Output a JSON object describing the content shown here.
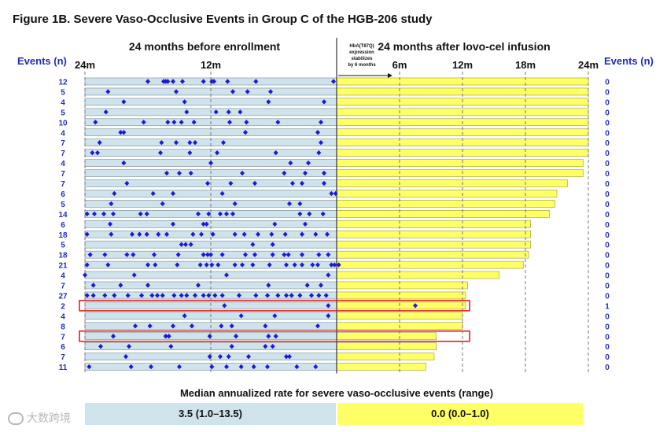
{
  "figure_title": "Figure 1B. Severe Vaso-Occlusive Events in Group C of the HGB-206 study",
  "chart_data": {
    "type": "bar",
    "title": "Figure 1B. Severe Vaso-Occlusive Events in Group C of the HGB-206 study",
    "left_panel": {
      "heading": "24 months before enrollment",
      "ticks": [
        "24m",
        "12m"
      ],
      "range_months": [
        24,
        0
      ],
      "color": "#cfe3ec"
    },
    "right_panel": {
      "heading": "24 months after lovo-cel infusion",
      "ticks": [
        "6m",
        "12m",
        "18m",
        "24m"
      ],
      "range_months": [
        0,
        24
      ],
      "color": "#ffff66",
      "annotation": [
        "HbA(T87Q)",
        "expression",
        "stabilizes",
        "by 6 months"
      ]
    },
    "y_label_left": "Events (n)",
    "y_label_right": "Events (n)",
    "patients": [
      {
        "events_before": 12,
        "events_after": 0,
        "followup_months": 24.0,
        "event_months": [
          18.0,
          16.5,
          16.3,
          16.1,
          15.6,
          14.7,
          12.7,
          11.9,
          11.7,
          10.4,
          7.7,
          0.3
        ]
      },
      {
        "events_before": 5,
        "events_after": 0,
        "followup_months": 24.0,
        "event_months": [
          21.8,
          15.3,
          9.9,
          8.5,
          6.3
        ]
      },
      {
        "events_before": 4,
        "events_after": 0,
        "followup_months": 24.0,
        "event_months": [
          20.3,
          14.5,
          6.5,
          1.2
        ]
      },
      {
        "events_before": 5,
        "events_after": 0,
        "followup_months": 24.0,
        "event_months": [
          22.0,
          14.3,
          11.5,
          10.3,
          9.2
        ]
      },
      {
        "events_before": 10,
        "events_after": 0,
        "followup_months": 24.0,
        "event_months": [
          23.0,
          18.4,
          16.1,
          15.5,
          14.8,
          13.6,
          10.2,
          8.6,
          5.6,
          1.5
        ]
      },
      {
        "events_before": 4,
        "events_after": 0,
        "followup_months": 24.0,
        "event_months": [
          20.6,
          20.3,
          8.7,
          1.8
        ]
      },
      {
        "events_before": 7,
        "events_after": 0,
        "followup_months": 24.0,
        "event_months": [
          22.6,
          16.7,
          15.3,
          14.0,
          13.5,
          10.8,
          1.5
        ]
      },
      {
        "events_before": 7,
        "events_after": 0,
        "followup_months": 24.0,
        "event_months": [
          23.3,
          22.8,
          16.8,
          14.0,
          11.4,
          5.8,
          1.7
        ]
      },
      {
        "events_before": 4,
        "events_after": 0,
        "followup_months": 23.5,
        "event_months": [
          20.3,
          12.0,
          4.4,
          2.7
        ]
      },
      {
        "events_before": 7,
        "events_after": 0,
        "followup_months": 23.5,
        "event_months": [
          16.2,
          15.0,
          13.9,
          9.0,
          5.0,
          3.0,
          1.2
        ]
      },
      {
        "events_before": 7,
        "events_after": 0,
        "followup_months": 22.0,
        "event_months": [
          20.0,
          12.3,
          10.1,
          7.8,
          4.2,
          3.3,
          1.2
        ]
      },
      {
        "events_before": 6,
        "events_after": 0,
        "followup_months": 21.0,
        "event_months": [
          21.2,
          17.5,
          15.6,
          10.9,
          0.5,
          0.1
        ]
      },
      {
        "events_before": 5,
        "events_after": 0,
        "followup_months": 20.8,
        "event_months": [
          21.5,
          16.6,
          9.7,
          4.5,
          3.5
        ]
      },
      {
        "events_before": 14,
        "events_after": 0,
        "followup_months": 20.3,
        "event_months": [
          23.8,
          23.1,
          22.2,
          21.3,
          18.7,
          18.1,
          13.2,
          12.2,
          11.1,
          10.5,
          9.9,
          3.5,
          2.6,
          1.3
        ]
      },
      {
        "events_before": 6,
        "events_after": 0,
        "followup_months": 18.5,
        "event_months": [
          21.6,
          15.6,
          12.7,
          12.4,
          5.9,
          3.0
        ]
      },
      {
        "events_before": 18,
        "events_after": 0,
        "followup_months": 18.5,
        "event_months": [
          23.8,
          21.5,
          19.5,
          18.8,
          18.1,
          17.0,
          16.2,
          13.7,
          12.9,
          11.8,
          9.7,
          8.8,
          7.5,
          6.2,
          4.9,
          3.3,
          2.0,
          0.9
        ]
      },
      {
        "events_before": 5,
        "events_after": 0,
        "followup_months": 18.5,
        "event_months": [
          14.8,
          14.4,
          13.9,
          8.0,
          6.1
        ]
      },
      {
        "events_before": 18,
        "events_after": 0,
        "followup_months": 18.3,
        "event_months": [
          23.5,
          22.1,
          20.0,
          19.4,
          17.4,
          15.1,
          12.7,
          12.3,
          12.0,
          10.9,
          8.7,
          7.8,
          6.1,
          5.0,
          4.6,
          3.3,
          1.7,
          0.8
        ]
      },
      {
        "events_before": 21,
        "events_after": 0,
        "followup_months": 17.8,
        "event_months": [
          23.8,
          21.8,
          18.0,
          17.3,
          15.2,
          13.0,
          12.4,
          11.9,
          11.3,
          9.7,
          9.0,
          8.0,
          6.4,
          4.8,
          4.0,
          3.3,
          2.3,
          1.8,
          0.5,
          0.2,
          -0.2
        ]
      },
      {
        "events_before": 4,
        "events_after": 0,
        "followup_months": 15.5,
        "event_months": [
          24.0,
          19.3,
          10.5,
          0.8
        ]
      },
      {
        "events_before": 7,
        "events_after": 0,
        "followup_months": 12.5,
        "event_months": [
          23.2,
          20.6,
          18.0,
          13.2,
          6.5,
          2.8,
          1.5
        ]
      },
      {
        "events_before": 27,
        "events_after": 0,
        "followup_months": 12.3,
        "event_months": [
          23.8,
          23.2,
          22.1,
          21.2,
          19.9,
          18.6,
          17.6,
          17.1,
          16.6,
          15.5,
          14.8,
          14.3,
          13.5,
          12.7,
          12.2,
          11.6,
          10.9,
          9.3,
          7.7,
          6.6,
          5.6,
          4.8,
          4.3,
          3.5,
          2.4,
          1.7,
          1.0
        ]
      },
      {
        "events_before": 2,
        "events_after": 1,
        "followup_months": 12.3,
        "event_months": [
          10.7,
          0.8
        ],
        "events_after_months": [
          7.5
        ],
        "highlighted": true
      },
      {
        "events_before": 4,
        "events_after": 0,
        "followup_months": 12.0,
        "event_months": [
          14.5,
          9.1,
          5.9,
          0.8
        ]
      },
      {
        "events_before": 8,
        "events_after": 0,
        "followup_months": 12.0,
        "event_months": [
          19.2,
          17.8,
          15.6,
          13.8,
          11.0,
          10.0,
          6.8,
          1.8
        ]
      },
      {
        "events_before": 7,
        "events_after": 0,
        "followup_months": 9.5,
        "event_months": [
          21.3,
          16.3,
          16.0,
          12.1,
          9.6,
          6.5,
          5.8
        ],
        "highlighted": true
      },
      {
        "events_before": 6,
        "events_after": 0,
        "followup_months": 9.5,
        "event_months": [
          22.5,
          19.8,
          15.8,
          10.0,
          6.8,
          6.1
        ]
      },
      {
        "events_before": 7,
        "events_after": 0,
        "followup_months": 9.3,
        "event_months": [
          20.1,
          12.1,
          11.1,
          10.3,
          8.4,
          4.8,
          4.5
        ]
      },
      {
        "events_before": 11,
        "events_after": 0,
        "followup_months": 8.5,
        "event_months": [
          23.6,
          19.6,
          17.7,
          15.0,
          11.9,
          10.5,
          9.1,
          7.9,
          6.6,
          3.8,
          2.0
        ]
      }
    ],
    "summary": {
      "label": "Median annualized rate for severe vaso-occlusive events (range)",
      "before": "3.5 (1.0–13.5)",
      "after": "0.0 (0.0–1.0)"
    }
  },
  "watermark": "大数跨境",
  "colors": {
    "left_bar": "#cfe3ec",
    "right_bar": "#ffff66",
    "event_marker": "#1a1ad6",
    "events_label": "#1f2ebf",
    "highlight": "#e02020"
  }
}
